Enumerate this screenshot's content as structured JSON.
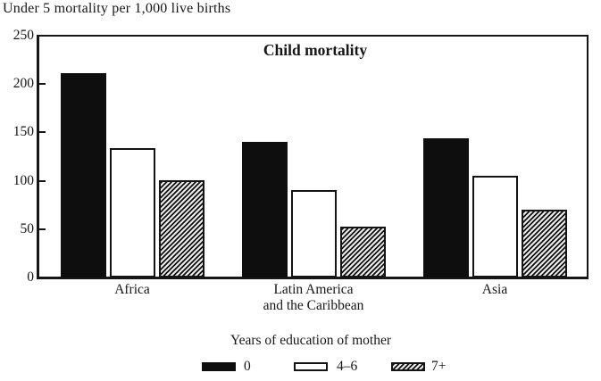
{
  "chart_data": {
    "type": "bar",
    "title": "Child mortality",
    "axis_title": "Under 5 mortality per 1,000 live births",
    "legend_title": "Years of education of mother",
    "legend_position": "bottom",
    "grid": false,
    "categories": [
      "Africa",
      "Latin America and the Caribbean",
      "Asia"
    ],
    "category_lines": [
      [
        "Africa"
      ],
      [
        "Latin America",
        "and the Caribbean"
      ],
      [
        "Asia"
      ]
    ],
    "series": [
      {
        "name": "0",
        "pattern": "solid-black",
        "values": [
          211,
          140,
          144
        ]
      },
      {
        "name": "4–6",
        "pattern": "white-outline",
        "values": [
          134,
          90,
          105
        ]
      },
      {
        "name": "7+",
        "pattern": "diagonal-hatch",
        "values": [
          101,
          53,
          70
        ]
      }
    ],
    "ylim": [
      0,
      250
    ],
    "yticks": [
      0,
      50,
      100,
      150,
      200,
      250
    ]
  },
  "colors": {
    "ink": "#161616",
    "paper": "#ffffff"
  }
}
